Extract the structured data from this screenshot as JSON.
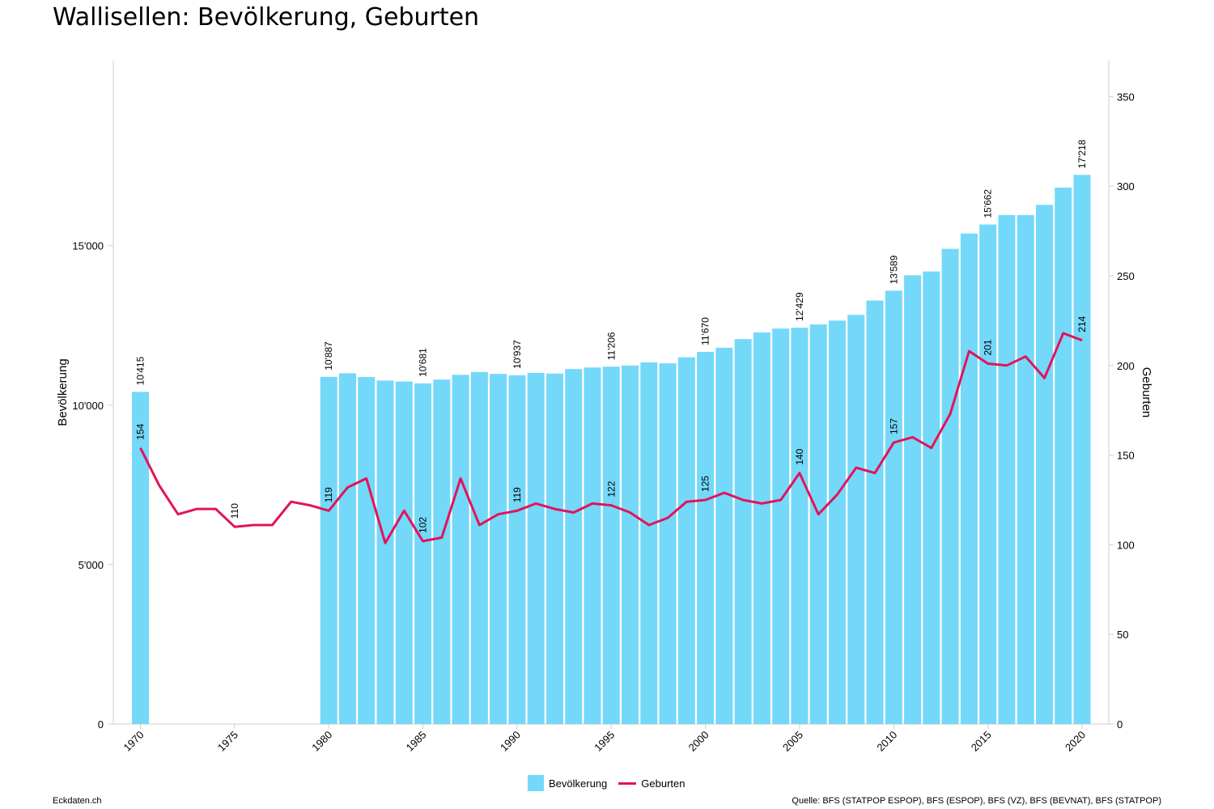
{
  "title": "Wallisellen: Bevölkerung, Geburten",
  "footer": {
    "left": "Eckdaten.ch",
    "right": "Quelle: BFS (STATPOP ESPOP), BFS (ESPOP), BFS (VZ), BFS (BEVNAT), BFS (STATPOP)"
  },
  "colors": {
    "bar": "#74d8f9",
    "line": "#e3135a",
    "axis": "#cfcfcf"
  },
  "chart_data": {
    "type": "bar",
    "x": [
      1970,
      1971,
      1972,
      1973,
      1974,
      1975,
      1976,
      1977,
      1978,
      1979,
      1980,
      1981,
      1982,
      1983,
      1984,
      1985,
      1986,
      1987,
      1988,
      1989,
      1990,
      1991,
      1992,
      1993,
      1994,
      1995,
      1996,
      1997,
      1998,
      1999,
      2000,
      2001,
      2002,
      2003,
      2004,
      2005,
      2006,
      2007,
      2008,
      2009,
      2010,
      2011,
      2012,
      2013,
      2014,
      2015,
      2016,
      2017,
      2018,
      2019,
      2020
    ],
    "x_ticks": [
      1970,
      1975,
      1980,
      1985,
      1990,
      1995,
      2000,
      2005,
      2010,
      2015,
      2020
    ],
    "ylabel": "Bevölkerung",
    "ylabel_right": "Geburten",
    "ylim": [
      0,
      20800
    ],
    "y_ticks": [
      0,
      5000,
      10000,
      15000
    ],
    "y_tick_labels": [
      "0",
      "5'000",
      "10'000",
      "15'000"
    ],
    "ylim_right": [
      0,
      370
    ],
    "y_ticks_right": [
      0,
      50,
      100,
      150,
      200,
      250,
      300,
      350
    ],
    "y_tick_labels_right": [
      "0",
      "50",
      "100",
      "150",
      "200",
      "250",
      "300",
      "350"
    ],
    "series": [
      {
        "name": "Bevölkerung",
        "type": "bar",
        "axis": "left",
        "values": [
          10415,
          null,
          null,
          null,
          null,
          null,
          null,
          null,
          null,
          null,
          10887,
          11000,
          10880,
          10770,
          10740,
          10681,
          10800,
          10950,
          11040,
          10980,
          10937,
          11010,
          10990,
          11130,
          11180,
          11206,
          11240,
          11340,
          11310,
          11500,
          11670,
          11800,
          12070,
          12280,
          12400,
          12429,
          12530,
          12650,
          12830,
          13280,
          13589,
          14070,
          14190,
          14900,
          15380,
          15662,
          15960,
          15960,
          16280,
          16820,
          17218
        ]
      },
      {
        "name": "Geburten",
        "type": "line",
        "axis": "right",
        "values": [
          154,
          null,
          null,
          null,
          null,
          null,
          null,
          null,
          null,
          null,
          119,
          132,
          137,
          101,
          119,
          102,
          104,
          137,
          111,
          117,
          119,
          123,
          120,
          118,
          123,
          122,
          118,
          111,
          115,
          124,
          125,
          129,
          125,
          123,
          125,
          140,
          117,
          128,
          143,
          140,
          157,
          160,
          154,
          173,
          208,
          201,
          200,
          205,
          193,
          218,
          214
        ],
        "values_partial_1970s": [
          154,
          133,
          117,
          120,
          120,
          110,
          111,
          111,
          124,
          122
        ]
      }
    ],
    "bar_labels": [
      {
        "year": 1970,
        "text": "10'415"
      },
      {
        "year": 1980,
        "text": "10'887"
      },
      {
        "year": 1985,
        "text": "10'681"
      },
      {
        "year": 1990,
        "text": "10'937"
      },
      {
        "year": 1995,
        "text": "11'206"
      },
      {
        "year": 2000,
        "text": "11'670"
      },
      {
        "year": 2005,
        "text": "12'429"
      },
      {
        "year": 2010,
        "text": "13'589"
      },
      {
        "year": 2015,
        "text": "15'662"
      },
      {
        "year": 2020,
        "text": "17'218"
      }
    ],
    "line_labels": [
      {
        "year": 1970,
        "text": "154"
      },
      {
        "year": 1975,
        "text": "110"
      },
      {
        "year": 1980,
        "text": "119"
      },
      {
        "year": 1985,
        "text": "102"
      },
      {
        "year": 1990,
        "text": "119"
      },
      {
        "year": 1995,
        "text": "122"
      },
      {
        "year": 2000,
        "text": "125"
      },
      {
        "year": 2005,
        "text": "140"
      },
      {
        "year": 2010,
        "text": "157"
      },
      {
        "year": 2015,
        "text": "201"
      },
      {
        "year": 2020,
        "text": "214"
      }
    ],
    "legend": [
      "Bevölkerung",
      "Geburten"
    ],
    "legend_position": "bottom"
  }
}
